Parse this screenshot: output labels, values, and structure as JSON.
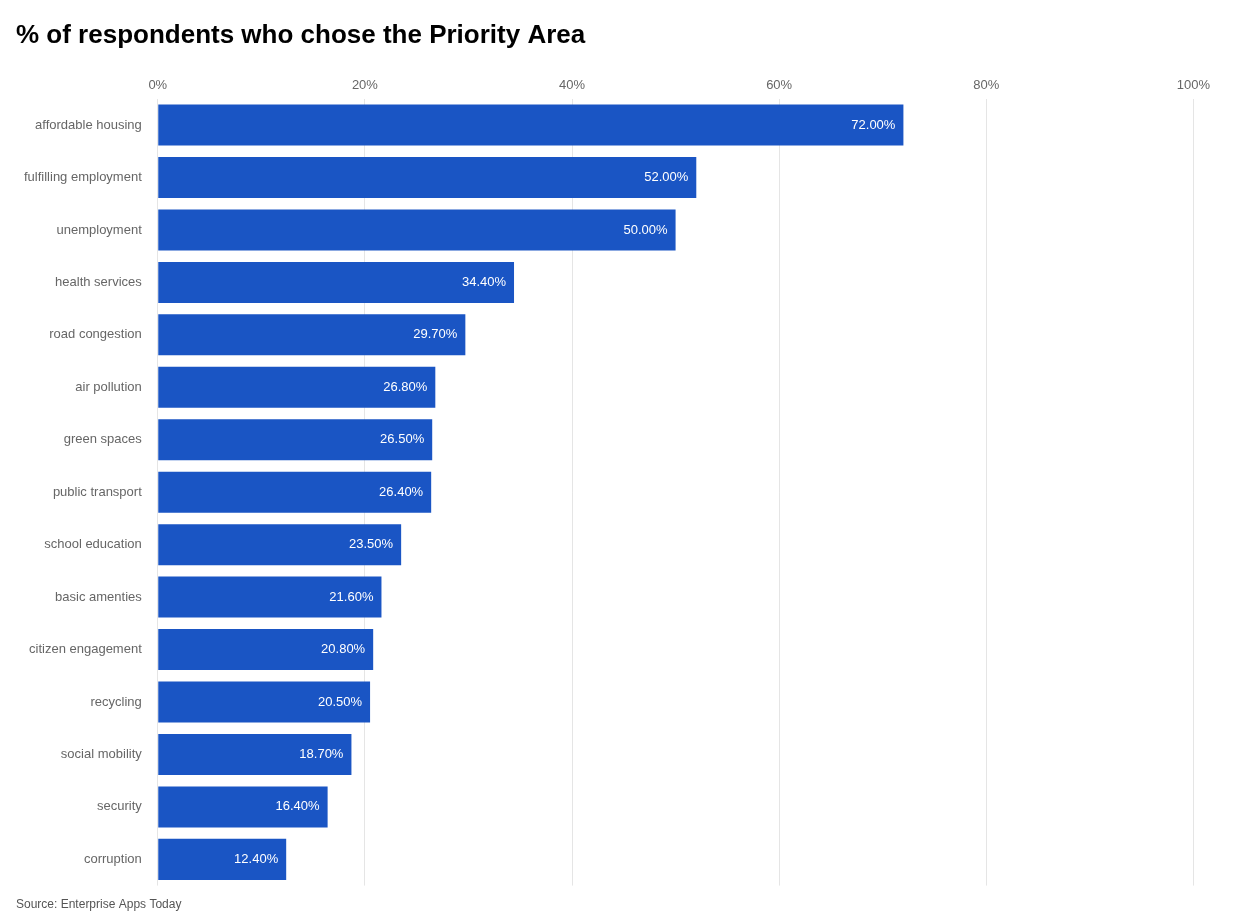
{
  "chart_data": {
    "type": "bar",
    "orientation": "horizontal",
    "title": "% of respondents who chose the Priority Area",
    "source": "Source: Enterprise Apps Today",
    "categories": [
      "affordable housing",
      "fulfilling employment",
      "unemployment",
      "health services",
      "road congestion",
      "air pollution",
      "green spaces",
      "public transport",
      "school education",
      "basic amenties",
      "citizen engagement",
      "recycling",
      "social mobility",
      "security",
      "corruption"
    ],
    "values": [
      72.0,
      52.0,
      50.0,
      34.4,
      29.7,
      26.8,
      26.5,
      26.4,
      23.5,
      21.6,
      20.8,
      20.5,
      18.7,
      16.4,
      12.4
    ],
    "value_labels": [
      "72.00%",
      "52.00%",
      "50.00%",
      "34.40%",
      "29.70%",
      "26.80%",
      "26.50%",
      "26.40%",
      "23.50%",
      "21.60%",
      "20.80%",
      "20.50%",
      "18.70%",
      "16.40%",
      "12.40%"
    ],
    "data_labels": true,
    "color": "#1a55c4",
    "xlim": [
      0,
      100
    ],
    "xticks": [
      {
        "value": 0,
        "label": "0%"
      },
      {
        "value": 20,
        "label": "20%"
      },
      {
        "value": 40,
        "label": "40%"
      },
      {
        "value": 60,
        "label": "60%"
      },
      {
        "value": 80,
        "label": "80%"
      },
      {
        "value": 100,
        "label": "100%"
      }
    ],
    "grid": true
  }
}
